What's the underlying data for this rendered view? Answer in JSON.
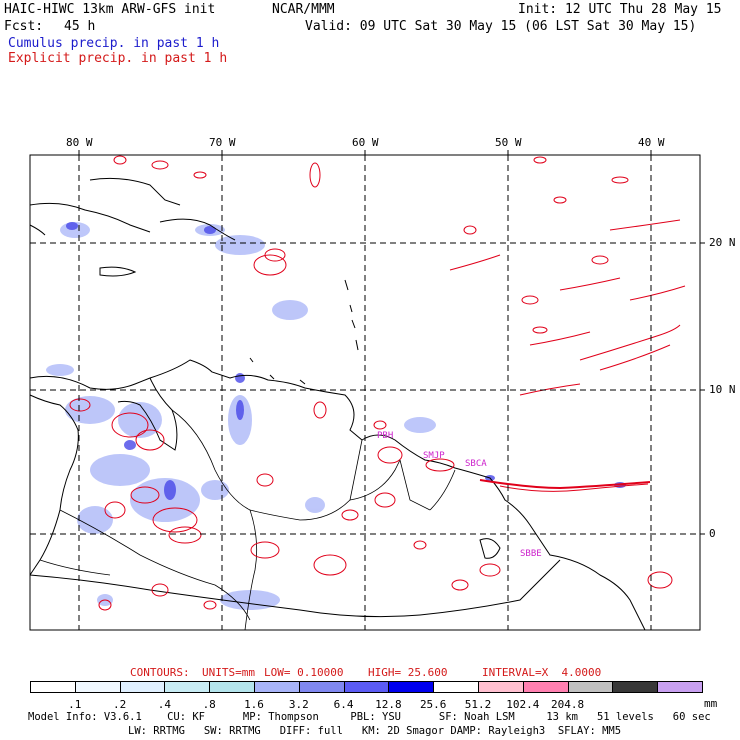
{
  "header": {
    "model_title": "HAIC-HIWC 13km ARW-GFS init",
    "center": "NCAR/MMM",
    "init_time": "Init: 12 UTC Thu 28 May 15",
    "forecast_label": "Fcst:",
    "forecast_hours": "45 h",
    "valid_time": "Valid: 09 UTC Sat 30 May 15 (06 LST Sat 30 May 15)",
    "field_cumulus": "Cumulus precip. in past 1 h",
    "field_explicit": "Explicit precip. in past 1 h"
  },
  "colors": {
    "cumulus_text": "#1c1ccc",
    "explicit_text": "#d41a1a",
    "contour_red": "#e0001a",
    "label_magenta": "#cc22cc"
  },
  "axes": {
    "longitude_labels": [
      "80 W",
      "70 W",
      "60 W",
      "50 W",
      "40 W"
    ],
    "latitude_labels": [
      "20 N",
      "10 N",
      "0"
    ]
  },
  "station_labels": [
    "PBH",
    "SMJP",
    "SBCA",
    "SBBE"
  ],
  "contour_info": {
    "contours_label": "CONTOURS:",
    "units": "UNITS=mm",
    "low": "LOW= 0.10000",
    "high": "HIGH= 25.600",
    "interval": "INTERVAL=X  4.0000"
  },
  "colorbar": {
    "colors": [
      "#ffffff",
      "#f0f8ff",
      "#e0f0ff",
      "#c8ecf4",
      "#b4e4ec",
      "#a8b4f8",
      "#8088f0",
      "#5c5cf4",
      "#0000ee",
      "#ffffff",
      "#ffc0d0",
      "#ff80b0",
      "#c0c0c0",
      "#383838",
      "#c8a0f0"
    ],
    "labels": [
      ".1",
      ".2",
      ".4",
      ".8",
      "1.6",
      "3.2",
      "6.4",
      "12.8",
      "25.6",
      "51.2",
      "102.4",
      "204.8"
    ],
    "units": "mm"
  },
  "model_info": {
    "line1": "Model Info: V3.6.1    CU: KF      MP: Thompson     PBL: YSU      SF: Noah LSM     13 km   51 levels   60 sec",
    "line2": "LW: RRTMG   SW: RRTMG   DIFF: full   KM: 2D Smagor DAMP: Rayleigh3  SFLAY: MM5"
  }
}
